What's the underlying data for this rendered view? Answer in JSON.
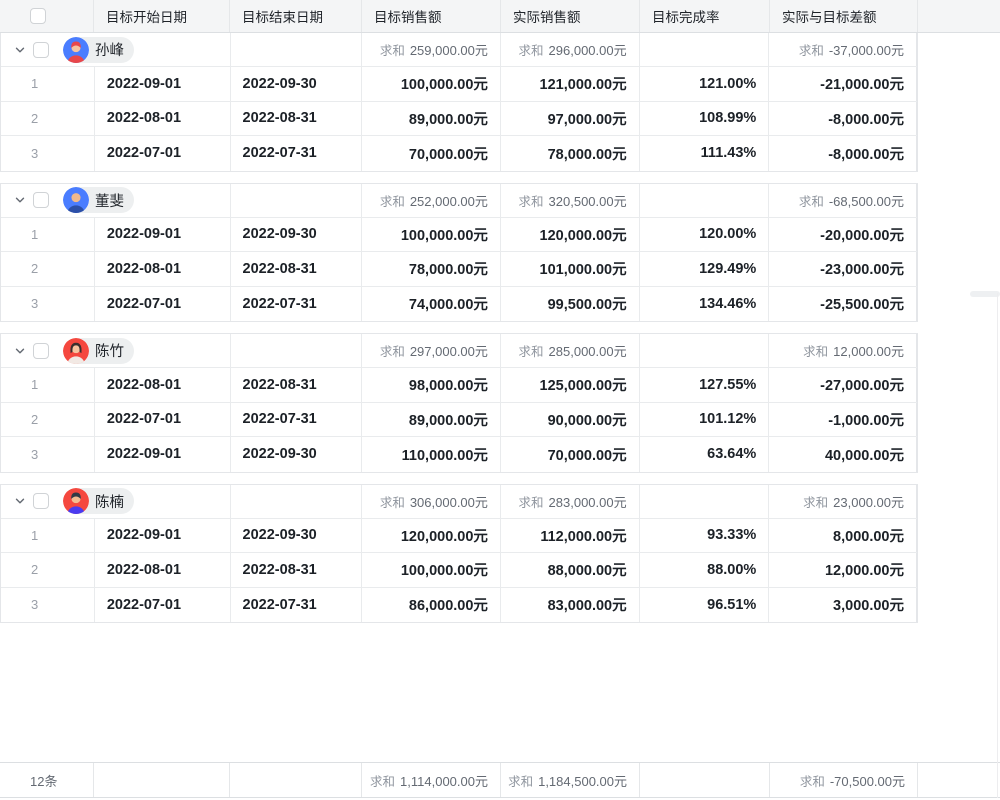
{
  "sum_label": "求和",
  "columns": [
    {
      "label": ""
    },
    {
      "label": "目标开始日期"
    },
    {
      "label": "目标结束日期"
    },
    {
      "label": "目标销售额"
    },
    {
      "label": "实际销售额"
    },
    {
      "label": "目标完成率"
    },
    {
      "label": "实际与目标差额"
    }
  ],
  "groups": [
    {
      "name": "孙峰",
      "avatar": {
        "bg": "#4a7dff",
        "skin": "#f7c4a0",
        "hair": "#e8474b",
        "shirt": "#e8474b",
        "style": "short"
      },
      "sums": {
        "target": "259,000.00元",
        "actual": "296,000.00元",
        "diff": "-37,000.00元"
      },
      "rows": [
        {
          "index": "1",
          "start": "2022-09-01",
          "end": "2022-09-30",
          "target": "100,000.00元",
          "actual": "121,000.00元",
          "rate": "121.00%",
          "diff": "-21,000.00元"
        },
        {
          "index": "2",
          "start": "2022-08-01",
          "end": "2022-08-31",
          "target": "89,000.00元",
          "actual": "97,000.00元",
          "rate": "108.99%",
          "diff": "-8,000.00元"
        },
        {
          "index": "3",
          "start": "2022-07-01",
          "end": "2022-07-31",
          "target": "70,000.00元",
          "actual": "78,000.00元",
          "rate": "111.43%",
          "diff": "-8,000.00元"
        }
      ]
    },
    {
      "name": "董斐",
      "avatar": {
        "bg": "#4a7dff",
        "skin": "#f0b98c",
        "hair": "#f0b98c",
        "shirt": "#2b4fa8",
        "style": "bald"
      },
      "sums": {
        "target": "252,000.00元",
        "actual": "320,500.00元",
        "diff": "-68,500.00元"
      },
      "rows": [
        {
          "index": "1",
          "start": "2022-09-01",
          "end": "2022-09-30",
          "target": "100,000.00元",
          "actual": "120,000.00元",
          "rate": "120.00%",
          "diff": "-20,000.00元"
        },
        {
          "index": "2",
          "start": "2022-08-01",
          "end": "2022-08-31",
          "target": "78,000.00元",
          "actual": "101,000.00元",
          "rate": "129.49%",
          "diff": "-23,000.00元"
        },
        {
          "index": "3",
          "start": "2022-07-01",
          "end": "2022-07-31",
          "target": "74,000.00元",
          "actual": "99,500.00元",
          "rate": "134.46%",
          "diff": "-25,500.00元"
        }
      ]
    },
    {
      "name": "陈竹",
      "avatar": {
        "bg": "#f5483f",
        "skin": "#f7c4a0",
        "hair": "#3b2f2e",
        "shirt": "#f2e9e4",
        "style": "long"
      },
      "sums": {
        "target": "297,000.00元",
        "actual": "285,000.00元",
        "diff": "12,000.00元"
      },
      "rows": [
        {
          "index": "1",
          "start": "2022-08-01",
          "end": "2022-08-31",
          "target": "98,000.00元",
          "actual": "125,000.00元",
          "rate": "127.55%",
          "diff": "-27,000.00元"
        },
        {
          "index": "2",
          "start": "2022-07-01",
          "end": "2022-07-31",
          "target": "89,000.00元",
          "actual": "90,000.00元",
          "rate": "101.12%",
          "diff": "-1,000.00元"
        },
        {
          "index": "3",
          "start": "2022-09-01",
          "end": "2022-09-30",
          "target": "110,000.00元",
          "actual": "70,000.00元",
          "rate": "63.64%",
          "diff": "40,000.00元"
        }
      ]
    },
    {
      "name": "陈楠",
      "avatar": {
        "bg": "#f5483f",
        "skin": "#f3bd92",
        "hair": "#333a45",
        "shirt": "#4a3bf0",
        "style": "short"
      },
      "sums": {
        "target": "306,000.00元",
        "actual": "283,000.00元",
        "diff": "23,000.00元"
      },
      "rows": [
        {
          "index": "1",
          "start": "2022-09-01",
          "end": "2022-09-30",
          "target": "120,000.00元",
          "actual": "112,000.00元",
          "rate": "93.33%",
          "diff": "8,000.00元"
        },
        {
          "index": "2",
          "start": "2022-08-01",
          "end": "2022-08-31",
          "target": "100,000.00元",
          "actual": "88,000.00元",
          "rate": "88.00%",
          "diff": "12,000.00元"
        },
        {
          "index": "3",
          "start": "2022-07-01",
          "end": "2022-07-31",
          "target": "86,000.00元",
          "actual": "83,000.00元",
          "rate": "96.51%",
          "diff": "3,000.00元"
        }
      ]
    }
  ],
  "footer": {
    "count": "12条",
    "target_sum": "1,114,000.00元",
    "actual_sum": "1,184,500.00元",
    "diff_sum": "-70,500.00元"
  }
}
